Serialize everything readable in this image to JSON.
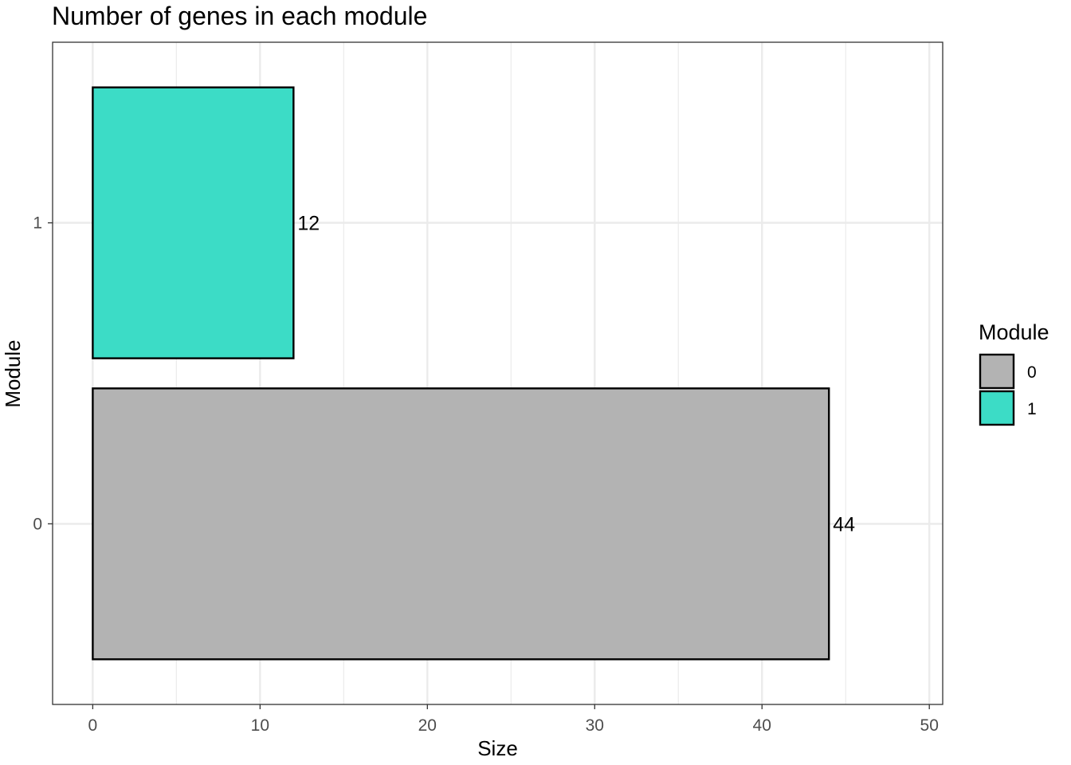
{
  "chart_data": {
    "type": "bar",
    "orientation": "horizontal",
    "title": "Number of genes in each module",
    "xlabel": "Size",
    "ylabel": "Module",
    "categories": [
      "0",
      "1"
    ],
    "values": [
      44,
      12
    ],
    "data_labels": [
      "44",
      "12"
    ],
    "colors": [
      "#b3b3b3",
      "#3cdcc6"
    ],
    "xlim": [
      -2.4,
      50.8
    ],
    "x_ticks": [
      0,
      10,
      20,
      30,
      40,
      50
    ],
    "x_tick_labels": [
      "0",
      "10",
      "20",
      "30",
      "40",
      "50"
    ],
    "y_tick_labels": [
      "0",
      "1"
    ],
    "grid": true,
    "legend": {
      "title": "Module",
      "position": "right",
      "entries": [
        {
          "label": "0",
          "color": "#b3b3b3"
        },
        {
          "label": "1",
          "color": "#3cdcc6"
        }
      ]
    }
  }
}
